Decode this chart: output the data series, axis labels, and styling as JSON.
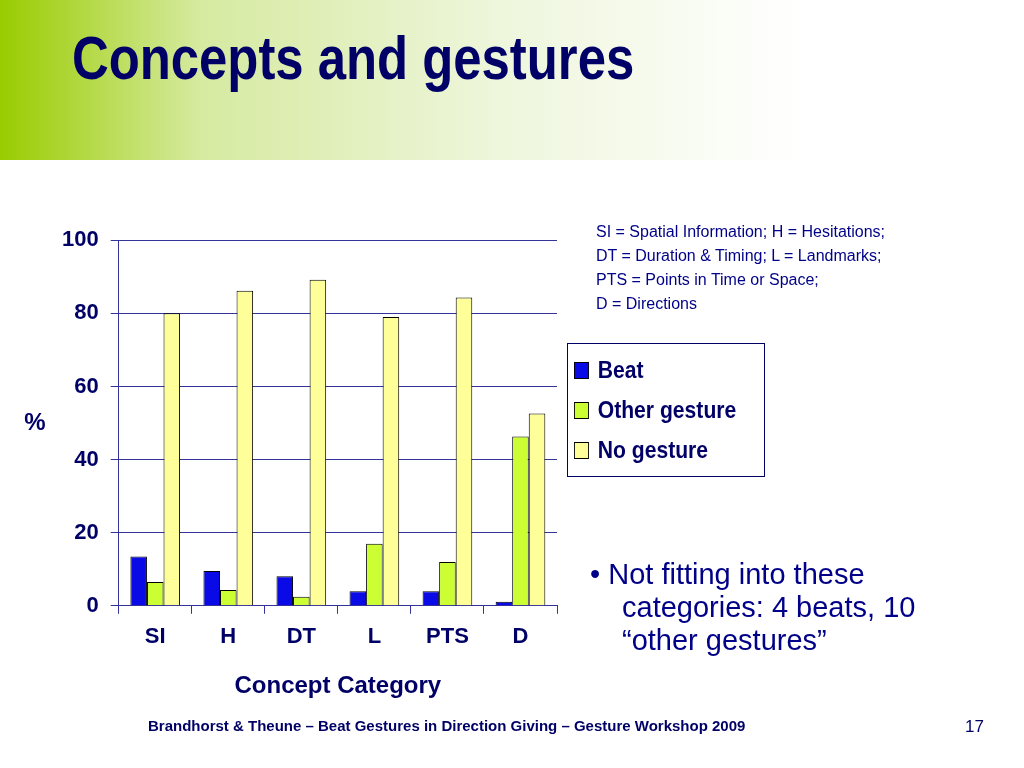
{
  "chart_data": {
    "type": "bar",
    "title": "Concepts and gestures",
    "xlabel": "Concept Category",
    "ylabel": "%",
    "categories": [
      "SI",
      "H",
      "DT",
      "L",
      "PTS",
      "D"
    ],
    "series": [
      {
        "name": "Beat",
        "color": "#0a0ae6",
        "values": [
          13.5,
          9.5,
          8.1,
          4.0,
          4.0,
          1.1
        ]
      },
      {
        "name": "Other gesture",
        "color": "#ccff33",
        "values": [
          6.5,
          4.3,
          2.5,
          17.0,
          12.0,
          46.3
        ]
      },
      {
        "name": "No gesture",
        "color": "#ffff99",
        "values": [
          80.0,
          86.2,
          89.2,
          79.0,
          84.3,
          52.6
        ]
      }
    ],
    "ylim": [
      0,
      100
    ],
    "yticks": [
      0,
      20,
      40,
      60,
      80,
      100
    ],
    "grid": "y",
    "legend": "right",
    "annotations": [
      "SI = Spatial Information; H = Hesitations;\nDT = Duration & Timing; L = Landmarks;\nPTS = Points in Time or Space;\nD = Directions",
      "• Not fitting into these categories: 4 beats, 10 “other gestures”",
      "Brandhorst & Theune – Beat Gestures in Direction Giving – Gesture Workshop 2009",
      "17"
    ]
  }
}
